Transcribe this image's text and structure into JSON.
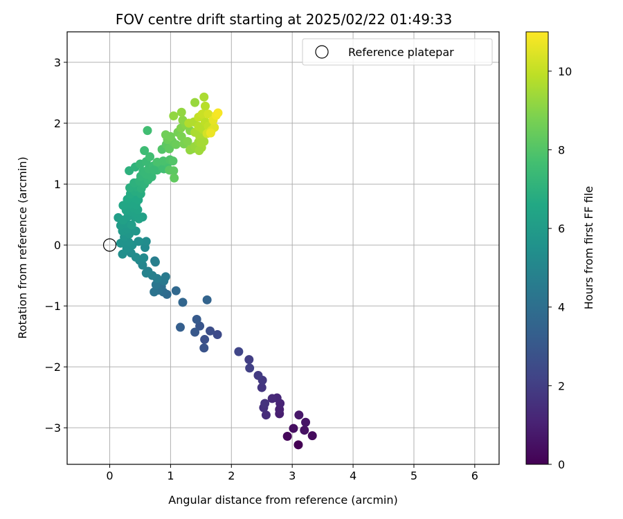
{
  "chart_data": {
    "type": "scatter",
    "title": "FOV centre drift starting at 2025/02/22 01:49:33",
    "xlabel": "Angular distance from reference (arcmin)",
    "ylabel": "Rotation from reference (arcmin)",
    "xlim": [
      -0.7,
      6.4
    ],
    "ylim": [
      -3.6,
      3.5
    ],
    "xticks": [
      0,
      1,
      2,
      3,
      4,
      5,
      6
    ],
    "yticks": [
      -3,
      -2,
      -1,
      0,
      1,
      2,
      3
    ],
    "grid": true,
    "legend": {
      "position": "top-right",
      "entries": [
        "Reference platepar"
      ]
    },
    "reference_point": {
      "x": 0,
      "y": 0,
      "marker": "open-circle"
    },
    "colorbar": {
      "label": "Hours from first FF file",
      "range": [
        0,
        11
      ],
      "ticks": [
        0,
        2,
        4,
        6,
        8,
        10
      ],
      "colormap": "viridis"
    },
    "points": [
      {
        "x": 3.1,
        "y": -3.28,
        "h": 0.0
      },
      {
        "x": 2.92,
        "y": -3.14,
        "h": 0.2
      },
      {
        "x": 3.33,
        "y": -3.13,
        "h": 0.3
      },
      {
        "x": 3.02,
        "y": -3.01,
        "h": 0.4
      },
      {
        "x": 3.2,
        "y": -3.04,
        "h": 0.5
      },
      {
        "x": 3.22,
        "y": -2.91,
        "h": 0.6
      },
      {
        "x": 3.11,
        "y": -2.79,
        "h": 0.7
      },
      {
        "x": 2.79,
        "y": -2.77,
        "h": 0.9
      },
      {
        "x": 2.79,
        "y": -2.7,
        "h": 1.0
      },
      {
        "x": 2.8,
        "y": -2.6,
        "h": 1.1
      },
      {
        "x": 2.75,
        "y": -2.51,
        "h": 1.2
      },
      {
        "x": 2.67,
        "y": -2.52,
        "h": 1.3
      },
      {
        "x": 2.57,
        "y": -2.79,
        "h": 1.4
      },
      {
        "x": 2.53,
        "y": -2.67,
        "h": 1.5
      },
      {
        "x": 2.55,
        "y": -2.6,
        "h": 1.6
      },
      {
        "x": 2.5,
        "y": -2.34,
        "h": 1.7
      },
      {
        "x": 2.51,
        "y": -2.22,
        "h": 1.8
      },
      {
        "x": 2.44,
        "y": -2.14,
        "h": 1.9
      },
      {
        "x": 2.29,
        "y": -1.88,
        "h": 2.0
      },
      {
        "x": 2.3,
        "y": -2.02,
        "h": 2.1
      },
      {
        "x": 2.12,
        "y": -1.75,
        "h": 2.3
      },
      {
        "x": 1.77,
        "y": -1.47,
        "h": 2.5
      },
      {
        "x": 1.65,
        "y": -1.41,
        "h": 2.6
      },
      {
        "x": 1.56,
        "y": -1.55,
        "h": 2.7
      },
      {
        "x": 1.55,
        "y": -1.69,
        "h": 2.8
      },
      {
        "x": 1.48,
        "y": -1.33,
        "h": 2.9
      },
      {
        "x": 1.4,
        "y": -1.43,
        "h": 3.0
      },
      {
        "x": 1.43,
        "y": -1.22,
        "h": 3.1
      },
      {
        "x": 1.16,
        "y": -1.35,
        "h": 3.3
      },
      {
        "x": 1.6,
        "y": -0.9,
        "h": 3.5
      },
      {
        "x": 1.2,
        "y": -0.94,
        "h": 3.6
      },
      {
        "x": 1.09,
        "y": -0.75,
        "h": 3.7
      },
      {
        "x": 0.94,
        "y": -0.81,
        "h": 3.8
      },
      {
        "x": 0.88,
        "y": -0.77,
        "h": 3.9
      },
      {
        "x": 0.85,
        "y": -0.68,
        "h": 4.0
      },
      {
        "x": 0.8,
        "y": -0.74,
        "h": 4.1
      },
      {
        "x": 0.73,
        "y": -0.77,
        "h": 4.2
      },
      {
        "x": 0.76,
        "y": -0.65,
        "h": 4.3
      },
      {
        "x": 0.89,
        "y": -0.59,
        "h": 4.4
      },
      {
        "x": 0.92,
        "y": -0.52,
        "h": 4.5
      },
      {
        "x": 0.78,
        "y": -0.55,
        "h": 4.6
      },
      {
        "x": 0.7,
        "y": -0.5,
        "h": 4.7
      },
      {
        "x": 0.63,
        "y": -0.43,
        "h": 4.8
      },
      {
        "x": 0.6,
        "y": -0.46,
        "h": 4.9
      },
      {
        "x": 0.74,
        "y": -0.26,
        "h": 4.6
      },
      {
        "x": 0.75,
        "y": -0.28,
        "h": 4.7
      },
      {
        "x": 0.54,
        "y": -0.33,
        "h": 5.0
      },
      {
        "x": 0.49,
        "y": -0.25,
        "h": 5.1
      },
      {
        "x": 0.56,
        "y": -0.21,
        "h": 5.2
      },
      {
        "x": 0.43,
        "y": -0.2,
        "h": 5.3
      },
      {
        "x": 0.35,
        "y": -0.13,
        "h": 5.3
      },
      {
        "x": 0.21,
        "y": -0.15,
        "h": 5.4
      },
      {
        "x": 0.28,
        "y": -0.06,
        "h": 5.5
      },
      {
        "x": 0.37,
        "y": 0.0,
        "h": 5.5
      },
      {
        "x": 0.58,
        "y": -0.04,
        "h": 5.2
      },
      {
        "x": 0.47,
        "y": 0.06,
        "h": 5.4
      },
      {
        "x": 0.31,
        "y": 0.05,
        "h": 5.6
      },
      {
        "x": 0.18,
        "y": 0.03,
        "h": 5.6
      },
      {
        "x": 0.6,
        "y": 0.06,
        "h": 5.3
      },
      {
        "x": 0.24,
        "y": 0.13,
        "h": 5.7
      },
      {
        "x": 0.32,
        "y": 0.18,
        "h": 5.8
      },
      {
        "x": 0.21,
        "y": 0.23,
        "h": 5.9
      },
      {
        "x": 0.29,
        "y": 0.26,
        "h": 5.9
      },
      {
        "x": 0.43,
        "y": 0.23,
        "h": 5.8
      },
      {
        "x": 0.48,
        "y": 0.06,
        "h": 5.4
      },
      {
        "x": 0.18,
        "y": 0.32,
        "h": 6.0
      },
      {
        "x": 0.28,
        "y": 0.35,
        "h": 6.0
      },
      {
        "x": 0.36,
        "y": 0.33,
        "h": 6.1
      },
      {
        "x": 0.14,
        "y": 0.45,
        "h": 6.1
      },
      {
        "x": 0.22,
        "y": 0.41,
        "h": 6.2
      },
      {
        "x": 0.3,
        "y": 0.47,
        "h": 6.2
      },
      {
        "x": 0.41,
        "y": 0.46,
        "h": 6.2
      },
      {
        "x": 0.54,
        "y": 0.46,
        "h": 6.2
      },
      {
        "x": 0.48,
        "y": 0.43,
        "h": 6.3
      },
      {
        "x": 0.35,
        "y": 0.55,
        "h": 6.3
      },
      {
        "x": 0.42,
        "y": 0.52,
        "h": 6.3
      },
      {
        "x": 0.27,
        "y": 0.57,
        "h": 6.4
      },
      {
        "x": 0.39,
        "y": 0.61,
        "h": 6.4
      },
      {
        "x": 0.46,
        "y": 0.58,
        "h": 6.4
      },
      {
        "x": 0.22,
        "y": 0.65,
        "h": 6.5
      },
      {
        "x": 0.34,
        "y": 0.68,
        "h": 6.5
      },
      {
        "x": 0.43,
        "y": 0.66,
        "h": 6.5
      },
      {
        "x": 0.29,
        "y": 0.75,
        "h": 6.6
      },
      {
        "x": 0.38,
        "y": 0.78,
        "h": 6.6
      },
      {
        "x": 0.47,
        "y": 0.74,
        "h": 6.6
      },
      {
        "x": 0.34,
        "y": 0.84,
        "h": 6.7
      },
      {
        "x": 0.42,
        "y": 0.88,
        "h": 6.8
      },
      {
        "x": 0.51,
        "y": 0.84,
        "h": 6.8
      },
      {
        "x": 0.33,
        "y": 0.94,
        "h": 6.9
      },
      {
        "x": 0.45,
        "y": 0.95,
        "h": 6.9
      },
      {
        "x": 0.52,
        "y": 0.93,
        "h": 7.0
      },
      {
        "x": 0.4,
        "y": 1.02,
        "h": 7.0
      },
      {
        "x": 0.49,
        "y": 1.05,
        "h": 7.1
      },
      {
        "x": 0.57,
        "y": 1.0,
        "h": 7.1
      },
      {
        "x": 0.63,
        "y": 1.07,
        "h": 7.2
      },
      {
        "x": 0.51,
        "y": 1.13,
        "h": 7.2
      },
      {
        "x": 0.6,
        "y": 1.16,
        "h": 7.3
      },
      {
        "x": 0.69,
        "y": 1.12,
        "h": 7.3
      },
      {
        "x": 0.55,
        "y": 1.21,
        "h": 7.3
      },
      {
        "x": 0.64,
        "y": 1.25,
        "h": 7.4
      },
      {
        "x": 0.32,
        "y": 1.22,
        "h": 7.0
      },
      {
        "x": 0.42,
        "y": 1.28,
        "h": 7.1
      },
      {
        "x": 0.5,
        "y": 1.33,
        "h": 7.3
      },
      {
        "x": 0.6,
        "y": 1.37,
        "h": 7.4
      },
      {
        "x": 0.72,
        "y": 1.3,
        "h": 7.5
      },
      {
        "x": 0.78,
        "y": 1.23,
        "h": 7.5
      },
      {
        "x": 0.84,
        "y": 1.3,
        "h": 7.6
      },
      {
        "x": 0.89,
        "y": 1.25,
        "h": 7.6
      },
      {
        "x": 0.95,
        "y": 1.34,
        "h": 7.7
      },
      {
        "x": 0.88,
        "y": 1.38,
        "h": 7.8
      },
      {
        "x": 0.78,
        "y": 1.36,
        "h": 7.8
      },
      {
        "x": 0.66,
        "y": 1.45,
        "h": 7.6
      },
      {
        "x": 0.57,
        "y": 1.55,
        "h": 7.5
      },
      {
        "x": 0.62,
        "y": 1.88,
        "h": 7.6
      },
      {
        "x": 0.73,
        "y": 1.23,
        "h": 7.4
      },
      {
        "x": 0.99,
        "y": 1.4,
        "h": 7.9
      },
      {
        "x": 1.04,
        "y": 1.38,
        "h": 8.0
      },
      {
        "x": 0.98,
        "y": 1.23,
        "h": 8.1
      },
      {
        "x": 1.05,
        "y": 1.22,
        "h": 8.2
      },
      {
        "x": 1.06,
        "y": 1.1,
        "h": 8.3
      },
      {
        "x": 0.86,
        "y": 1.57,
        "h": 8.0
      },
      {
        "x": 0.93,
        "y": 1.65,
        "h": 8.2
      },
      {
        "x": 0.98,
        "y": 1.58,
        "h": 8.3
      },
      {
        "x": 1.03,
        "y": 1.7,
        "h": 8.4
      },
      {
        "x": 1.09,
        "y": 1.65,
        "h": 8.5
      },
      {
        "x": 0.95,
        "y": 1.73,
        "h": 8.5
      },
      {
        "x": 1.0,
        "y": 1.78,
        "h": 8.6
      },
      {
        "x": 0.92,
        "y": 1.81,
        "h": 8.6
      },
      {
        "x": 1.12,
        "y": 1.85,
        "h": 8.7
      },
      {
        "x": 1.18,
        "y": 1.78,
        "h": 8.8
      },
      {
        "x": 1.22,
        "y": 1.66,
        "h": 8.8
      },
      {
        "x": 1.28,
        "y": 1.7,
        "h": 8.9
      },
      {
        "x": 1.17,
        "y": 1.92,
        "h": 8.9
      },
      {
        "x": 1.25,
        "y": 1.97,
        "h": 9.0
      },
      {
        "x": 1.32,
        "y": 1.88,
        "h": 9.0
      },
      {
        "x": 1.2,
        "y": 2.05,
        "h": 9.1
      },
      {
        "x": 1.05,
        "y": 2.12,
        "h": 9.2
      },
      {
        "x": 1.18,
        "y": 2.18,
        "h": 9.2
      },
      {
        "x": 1.36,
        "y": 1.58,
        "h": 9.1
      },
      {
        "x": 1.32,
        "y": 1.56,
        "h": 9.2
      },
      {
        "x": 1.4,
        "y": 1.62,
        "h": 9.3
      },
      {
        "x": 1.46,
        "y": 1.69,
        "h": 9.4
      },
      {
        "x": 1.51,
        "y": 1.6,
        "h": 9.5
      },
      {
        "x": 1.55,
        "y": 1.7,
        "h": 9.5
      },
      {
        "x": 1.48,
        "y": 1.78,
        "h": 9.6
      },
      {
        "x": 1.4,
        "y": 1.85,
        "h": 9.6
      },
      {
        "x": 1.3,
        "y": 2.0,
        "h": 9.7
      },
      {
        "x": 1.38,
        "y": 2.02,
        "h": 9.7
      },
      {
        "x": 1.46,
        "y": 1.95,
        "h": 9.8
      },
      {
        "x": 1.53,
        "y": 1.9,
        "h": 9.8
      },
      {
        "x": 1.57,
        "y": 2.02,
        "h": 9.9
      },
      {
        "x": 1.62,
        "y": 1.95,
        "h": 10.0
      },
      {
        "x": 1.4,
        "y": 2.34,
        "h": 9.3
      },
      {
        "x": 1.55,
        "y": 2.43,
        "h": 9.6
      },
      {
        "x": 1.57,
        "y": 2.28,
        "h": 9.8
      },
      {
        "x": 1.46,
        "y": 2.1,
        "h": 10.0
      },
      {
        "x": 1.52,
        "y": 2.15,
        "h": 10.1
      },
      {
        "x": 1.62,
        "y": 2.15,
        "h": 10.3
      },
      {
        "x": 1.6,
        "y": 1.83,
        "h": 10.3
      },
      {
        "x": 1.67,
        "y": 1.88,
        "h": 10.4
      },
      {
        "x": 1.72,
        "y": 1.93,
        "h": 10.5
      },
      {
        "x": 1.7,
        "y": 2.05,
        "h": 10.6
      },
      {
        "x": 1.75,
        "y": 2.13,
        "h": 10.8
      },
      {
        "x": 1.78,
        "y": 2.17,
        "h": 10.9
      },
      {
        "x": 1.66,
        "y": 1.84,
        "h": 10.7
      },
      {
        "x": 1.47,
        "y": 1.55,
        "h": 9.4
      },
      {
        "x": 1.5,
        "y": 1.68,
        "h": 9.5
      }
    ]
  }
}
